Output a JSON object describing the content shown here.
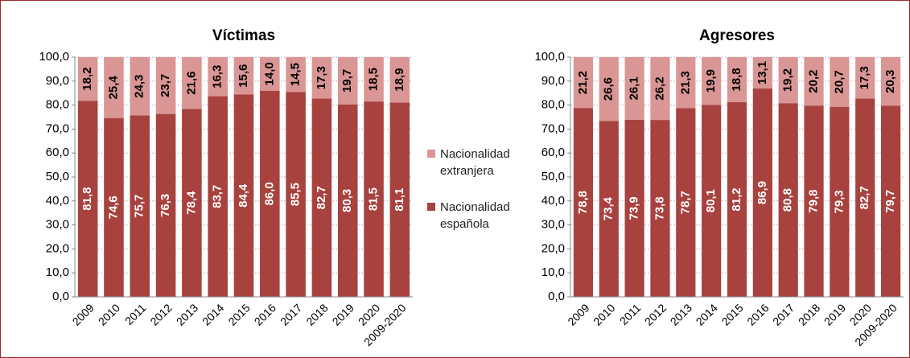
{
  "chart_data": [
    {
      "type": "bar",
      "title": "Víctimas",
      "categories": [
        "2009",
        "2010",
        "2011",
        "2012",
        "2013",
        "2014",
        "2015",
        "2016",
        "2017",
        "2018",
        "2019",
        "2020",
        "2009-2020"
      ],
      "series": [
        {
          "name": "Nacionalidad española",
          "color": "#a8423f",
          "values": [
            81.8,
            74.6,
            75.7,
            76.3,
            78.4,
            83.7,
            84.4,
            86.0,
            85.5,
            82.7,
            80.3,
            81.5,
            81.1
          ],
          "value_labels": [
            "81,8",
            "74,6",
            "75,7",
            "76,3",
            "78,4",
            "83,7",
            "84,4",
            "86,0",
            "85,5",
            "82,7",
            "80,3",
            "81,5",
            "81,1"
          ]
        },
        {
          "name": "Nacionalidad extranjera",
          "color": "#d99694",
          "values": [
            18.2,
            25.4,
            24.3,
            23.7,
            21.6,
            16.3,
            15.6,
            14.0,
            14.5,
            17.3,
            19.7,
            18.5,
            18.9
          ],
          "value_labels": [
            "18,2",
            "25,4",
            "24,3",
            "23,7",
            "21,6",
            "16,3",
            "15,6",
            "14,0",
            "14,5",
            "17,3",
            "19,7",
            "18,5",
            "18,9"
          ]
        }
      ],
      "ylim": [
        0,
        100
      ],
      "yticks": [
        {
          "value": 0,
          "label": "0,0"
        },
        {
          "value": 10,
          "label": "10,0"
        },
        {
          "value": 20,
          "label": "20,0"
        },
        {
          "value": 30,
          "label": "30,0"
        },
        {
          "value": 40,
          "label": "40,0"
        },
        {
          "value": 50,
          "label": "50,0"
        },
        {
          "value": 60,
          "label": "60,0"
        },
        {
          "value": 70,
          "label": "70,0"
        },
        {
          "value": 80,
          "label": "80,0"
        },
        {
          "value": 90,
          "label": "90,0"
        },
        {
          "value": 100,
          "label": "100,0"
        }
      ],
      "stacked": true
    },
    {
      "type": "bar",
      "title": "Agresores",
      "categories": [
        "2009",
        "2010",
        "2011",
        "2012",
        "2013",
        "2014",
        "2015",
        "2016",
        "2017",
        "2018",
        "2019",
        "2020",
        "2009-2020"
      ],
      "series": [
        {
          "color": "#a8423f",
          "values": [
            78.8,
            73.4,
            73.9,
            73.8,
            78.7,
            80.1,
            81.2,
            86.9,
            80.8,
            79.8,
            79.3,
            82.7,
            79.7
          ],
          "value_labels": [
            "78,8",
            "73,4",
            "73,9",
            "73,8",
            "78,7",
            "80,1",
            "81,2",
            "86,9",
            "80,8",
            "79,8",
            "79,3",
            "82,7",
            "79,7"
          ]
        },
        {
          "color": "#d99694",
          "values": [
            21.2,
            26.6,
            26.1,
            26.2,
            21.3,
            19.9,
            18.8,
            13.1,
            19.2,
            20.2,
            20.7,
            17.3,
            20.3
          ],
          "value_labels": [
            "21,2",
            "26,6",
            "26,1",
            "26,2",
            "21,3",
            "19,9",
            "18,8",
            "13,1",
            "19,2",
            "20,2",
            "20,7",
            "17,3",
            "20,3"
          ]
        }
      ],
      "ylim": [
        0,
        100
      ],
      "yticks": [
        {
          "value": 0,
          "label": "0,0"
        },
        {
          "value": 10,
          "label": "10,0"
        },
        {
          "value": 20,
          "label": "20,0"
        },
        {
          "value": 30,
          "label": "30,0"
        },
        {
          "value": 40,
          "label": "40,0"
        },
        {
          "value": 50,
          "label": "50,0"
        },
        {
          "value": 60,
          "label": "60,0"
        },
        {
          "value": 70,
          "label": "70,0"
        },
        {
          "value": 80,
          "label": "80,0"
        },
        {
          "value": 90,
          "label": "90,0"
        },
        {
          "value": 100,
          "label": "100,0"
        }
      ],
      "stacked": true
    }
  ]
}
